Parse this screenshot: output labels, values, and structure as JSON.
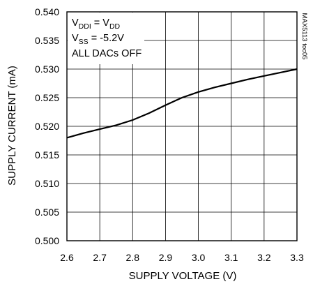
{
  "chart_data": {
    "type": "line",
    "xlabel": "SUPPLY VOLTAGE (V)",
    "ylabel": "SUPPLY CURRENT (mA)",
    "xlim": [
      2.6,
      3.3
    ],
    "ylim": [
      0.5,
      0.54
    ],
    "x_ticks": [
      "2.6",
      "2.7",
      "2.8",
      "2.9",
      "3.0",
      "3.1",
      "3.2",
      "3.3"
    ],
    "y_ticks": [
      "0.500",
      "0.505",
      "0.510",
      "0.515",
      "0.520",
      "0.525",
      "0.530",
      "0.535",
      "0.540"
    ],
    "grid": true,
    "annotation_lines": [
      {
        "main": "V",
        "sub": "DDI",
        "mid": " = V",
        "sub2": "DD",
        "tail": ""
      },
      {
        "main": "V",
        "sub": "SS",
        "mid": " = -5.2V",
        "sub2": "",
        "tail": ""
      },
      {
        "main": "ALL DACs OFF",
        "sub": "",
        "mid": "",
        "sub2": "",
        "tail": ""
      }
    ],
    "figure_tag": "MAX5113 toc05",
    "series": [
      {
        "x": [
          2.6,
          2.65,
          2.7,
          2.75,
          2.8,
          2.85,
          2.9,
          2.95,
          3.0,
          3.05,
          3.1,
          3.15,
          3.2,
          3.25,
          3.3
        ],
        "y": [
          0.518,
          0.5188,
          0.5195,
          0.5202,
          0.5211,
          0.5223,
          0.5237,
          0.525,
          0.526,
          0.5268,
          0.5275,
          0.5282,
          0.5288,
          0.5294,
          0.53
        ]
      }
    ]
  }
}
